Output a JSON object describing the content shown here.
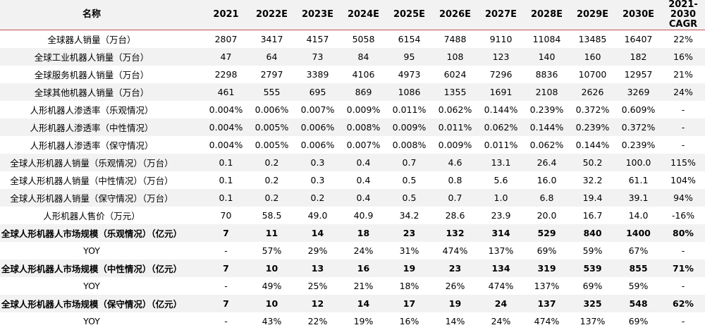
{
  "table": {
    "header": [
      "名称",
      "2021",
      "2022E",
      "2023E",
      "2024E",
      "2025E",
      "2026E",
      "2027E",
      "2028E",
      "2029E",
      "2030E",
      "2021-2030 CAGR"
    ],
    "rows": [
      {
        "cells": [
          "全球器人销量（万台）",
          "2807",
          "3417",
          "4157",
          "5058",
          "6154",
          "7488",
          "9110",
          "11084",
          "13485",
          "16407",
          "22%"
        ],
        "bold": false
      },
      {
        "cells": [
          "全球工业机器人销量（万台）",
          "47",
          "64",
          "73",
          "84",
          "95",
          "108",
          "123",
          "140",
          "160",
          "182",
          "16%"
        ],
        "bold": false
      },
      {
        "cells": [
          "全球服务机器人销量（万台）",
          "2298",
          "2797",
          "3389",
          "4106",
          "4973",
          "6024",
          "7296",
          "8836",
          "10700",
          "12957",
          "21%"
        ],
        "bold": false
      },
      {
        "cells": [
          "全球其他机器人销量（万台）",
          "461",
          "555",
          "695",
          "869",
          "1086",
          "1355",
          "1691",
          "2108",
          "2626",
          "3269",
          "24%"
        ],
        "bold": false
      },
      {
        "cells": [
          "人形机器人渗透率（乐观情况）",
          "0.004%",
          "0.006%",
          "0.007%",
          "0.009%",
          "0.011%",
          "0.062%",
          "0.144%",
          "0.239%",
          "0.372%",
          "0.609%",
          "-"
        ],
        "bold": false
      },
      {
        "cells": [
          "人形机器人渗透率（中性情况）",
          "0.004%",
          "0.005%",
          "0.006%",
          "0.008%",
          "0.009%",
          "0.011%",
          "0.062%",
          "0.144%",
          "0.239%",
          "0.372%",
          "-"
        ],
        "bold": false
      },
      {
        "cells": [
          "人形机器人渗透率（保守情况）",
          "0.004%",
          "0.005%",
          "0.006%",
          "0.007%",
          "0.008%",
          "0.009%",
          "0.011%",
          "0.062%",
          "0.144%",
          "0.239%",
          "-"
        ],
        "bold": false
      },
      {
        "cells": [
          "全球人形机器人销量（乐观情况）（万台）",
          "0.1",
          "0.2",
          "0.3",
          "0.4",
          "0.7",
          "4.6",
          "13.1",
          "26.4",
          "50.2",
          "100.0",
          "115%"
        ],
        "bold": false
      },
      {
        "cells": [
          "全球人形机器人销量（中性情况）（万台）",
          "0.1",
          "0.2",
          "0.3",
          "0.4",
          "0.5",
          "0.8",
          "5.6",
          "16.0",
          "32.2",
          "61.1",
          "104%"
        ],
        "bold": false
      },
      {
        "cells": [
          "全球人形机器人销量（保守情况）（万台）",
          "0.1",
          "0.2",
          "0.2",
          "0.4",
          "0.5",
          "0.7",
          "1.0",
          "6.8",
          "19.4",
          "39.1",
          "94%"
        ],
        "bold": false
      },
      {
        "cells": [
          "人形机器人售价（万元）",
          "70",
          "58.5",
          "49.0",
          "40.9",
          "34.2",
          "28.6",
          "23.9",
          "20.0",
          "16.7",
          "14.0",
          "-16%"
        ],
        "bold": false
      },
      {
        "cells": [
          "全球人形机器人市场规模（乐观情况）（亿元）",
          "7",
          "11",
          "14",
          "18",
          "23",
          "132",
          "314",
          "529",
          "840",
          "1400",
          "80%"
        ],
        "bold": true
      },
      {
        "cells": [
          "YOY",
          "-",
          "57%",
          "29%",
          "24%",
          "31%",
          "474%",
          "137%",
          "69%",
          "59%",
          "67%",
          "-"
        ],
        "bold": false
      },
      {
        "cells": [
          "全球人形机器人市场规模（中性情况）（亿元）",
          "7",
          "10",
          "13",
          "16",
          "19",
          "23",
          "134",
          "319",
          "539",
          "855",
          "71%"
        ],
        "bold": true
      },
      {
        "cells": [
          "YOY",
          "-",
          "49%",
          "25%",
          "21%",
          "18%",
          "26%",
          "474%",
          "137%",
          "69%",
          "59%",
          "-"
        ],
        "bold": false
      },
      {
        "cells": [
          "全球人形机器人市场规模（保守情况）（亿元）",
          "7",
          "10",
          "12",
          "14",
          "17",
          "19",
          "24",
          "137",
          "325",
          "548",
          "62%"
        ],
        "bold": true
      },
      {
        "cells": [
          "YOY",
          "-",
          "43%",
          "22%",
          "19%",
          "16%",
          "14%",
          "24%",
          "474%",
          "137%",
          "69%",
          "-"
        ],
        "bold": false
      }
    ]
  }
}
